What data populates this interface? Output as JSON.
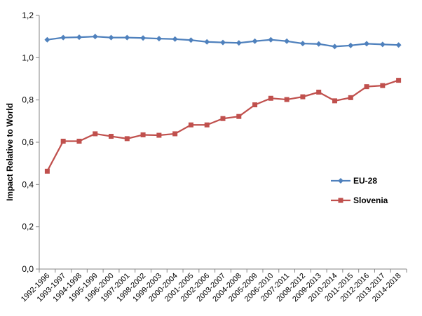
{
  "chart_data": {
    "type": "line",
    "ylabel": "Impact Relative to World",
    "ylim": [
      0,
      1.2
    ],
    "y_ticks": [
      "0,0",
      "0,2",
      "0,4",
      "0,6",
      "0,8",
      "1,0",
      "1,2"
    ],
    "grid": false,
    "legend_placement": "right",
    "categories": [
      "1992-1996",
      "1993-1997",
      "1994-1998",
      "1995-1999",
      "1996-2000",
      "1997-2001",
      "1998-2002",
      "1999-2003",
      "2000-2004",
      "2001-2005",
      "2002-2006",
      "2003-2007",
      "2004-2008",
      "2005-2009",
      "2006-2010",
      "2007-2011",
      "2008-2012",
      "2009-2013",
      "2010-2014",
      "2011-2015",
      "2012-2016",
      "2013-2017",
      "2014-2018"
    ],
    "series": [
      {
        "name": "EU-28",
        "color": "#4F81BD",
        "marker": "diamond",
        "values": [
          1.085,
          1.095,
          1.097,
          1.1,
          1.095,
          1.095,
          1.093,
          1.09,
          1.088,
          1.083,
          1.075,
          1.072,
          1.07,
          1.078,
          1.085,
          1.078,
          1.067,
          1.065,
          1.053,
          1.058,
          1.066,
          1.063,
          1.06
        ]
      },
      {
        "name": "Slovenia",
        "color": "#C0504D",
        "marker": "square",
        "values": [
          0.463,
          0.605,
          0.605,
          0.64,
          0.628,
          0.617,
          0.635,
          0.633,
          0.64,
          0.682,
          0.682,
          0.712,
          0.722,
          0.777,
          0.808,
          0.802,
          0.815,
          0.837,
          0.796,
          0.811,
          0.863,
          0.868,
          0.893
        ]
      }
    ]
  }
}
